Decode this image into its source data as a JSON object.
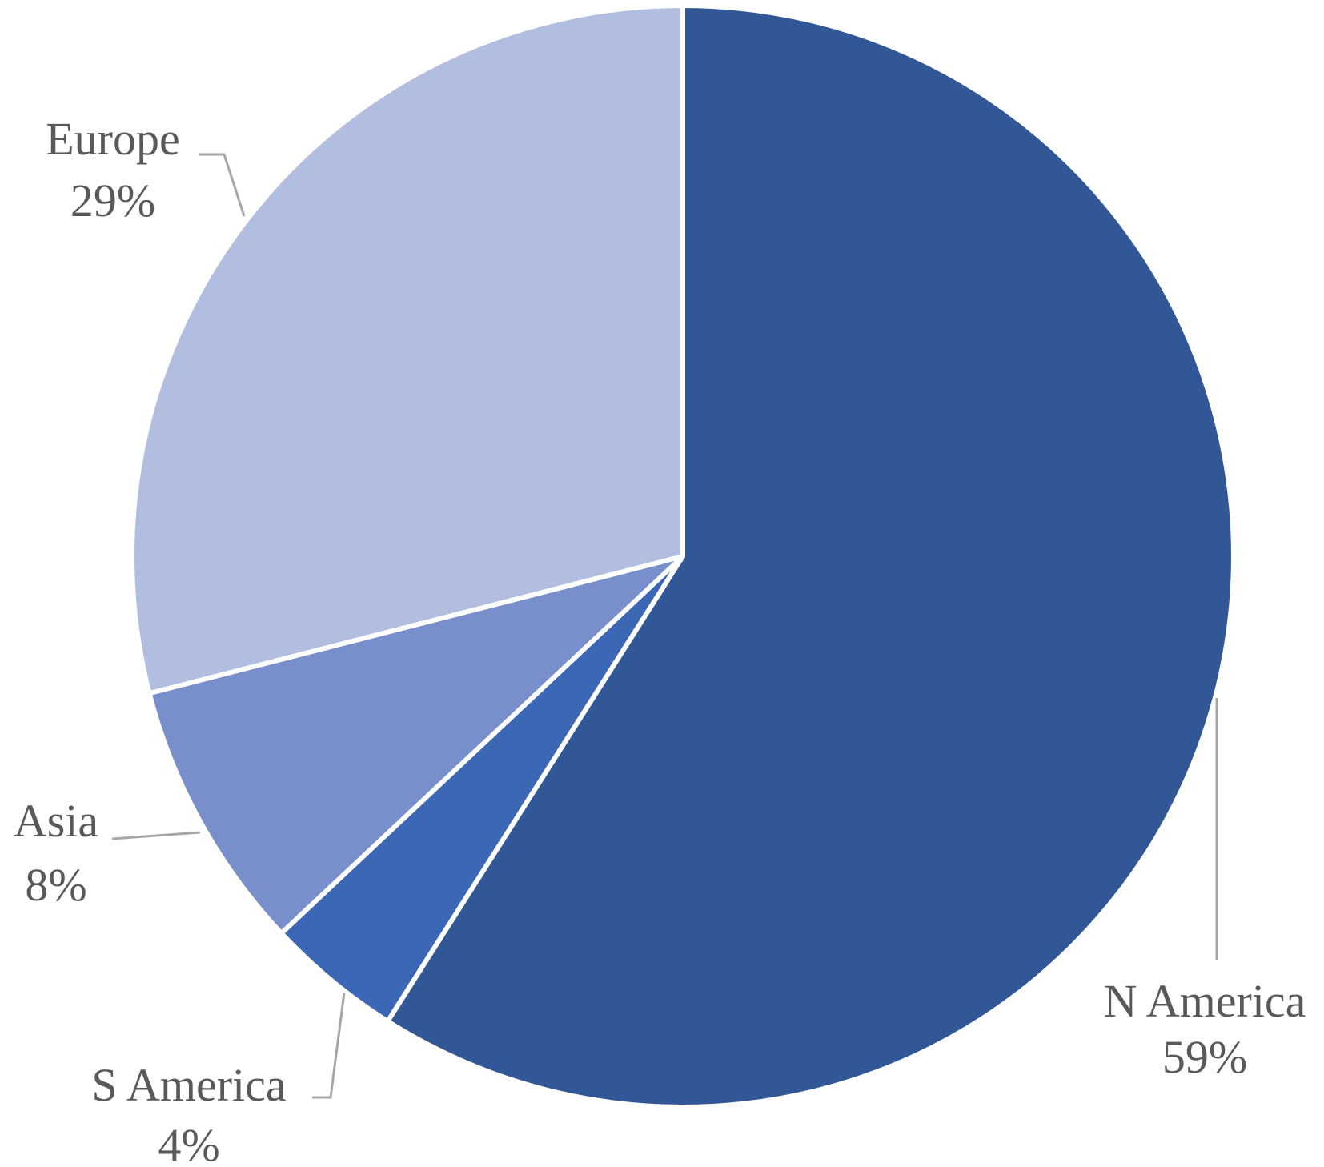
{
  "chart_data": {
    "type": "pie",
    "title": "",
    "categories": [
      "N America",
      "S America",
      "Asia",
      "Europe"
    ],
    "values": [
      59,
      4,
      8,
      29
    ],
    "value_labels": [
      "59%",
      "4%",
      "8%",
      "29%"
    ],
    "colors": [
      "#325797",
      "#3c67b4",
      "#798fcc",
      "#b2bedf"
    ],
    "start_angle_deg": 0,
    "direction": "clockwise",
    "data_labels": "outside with leader lines"
  }
}
